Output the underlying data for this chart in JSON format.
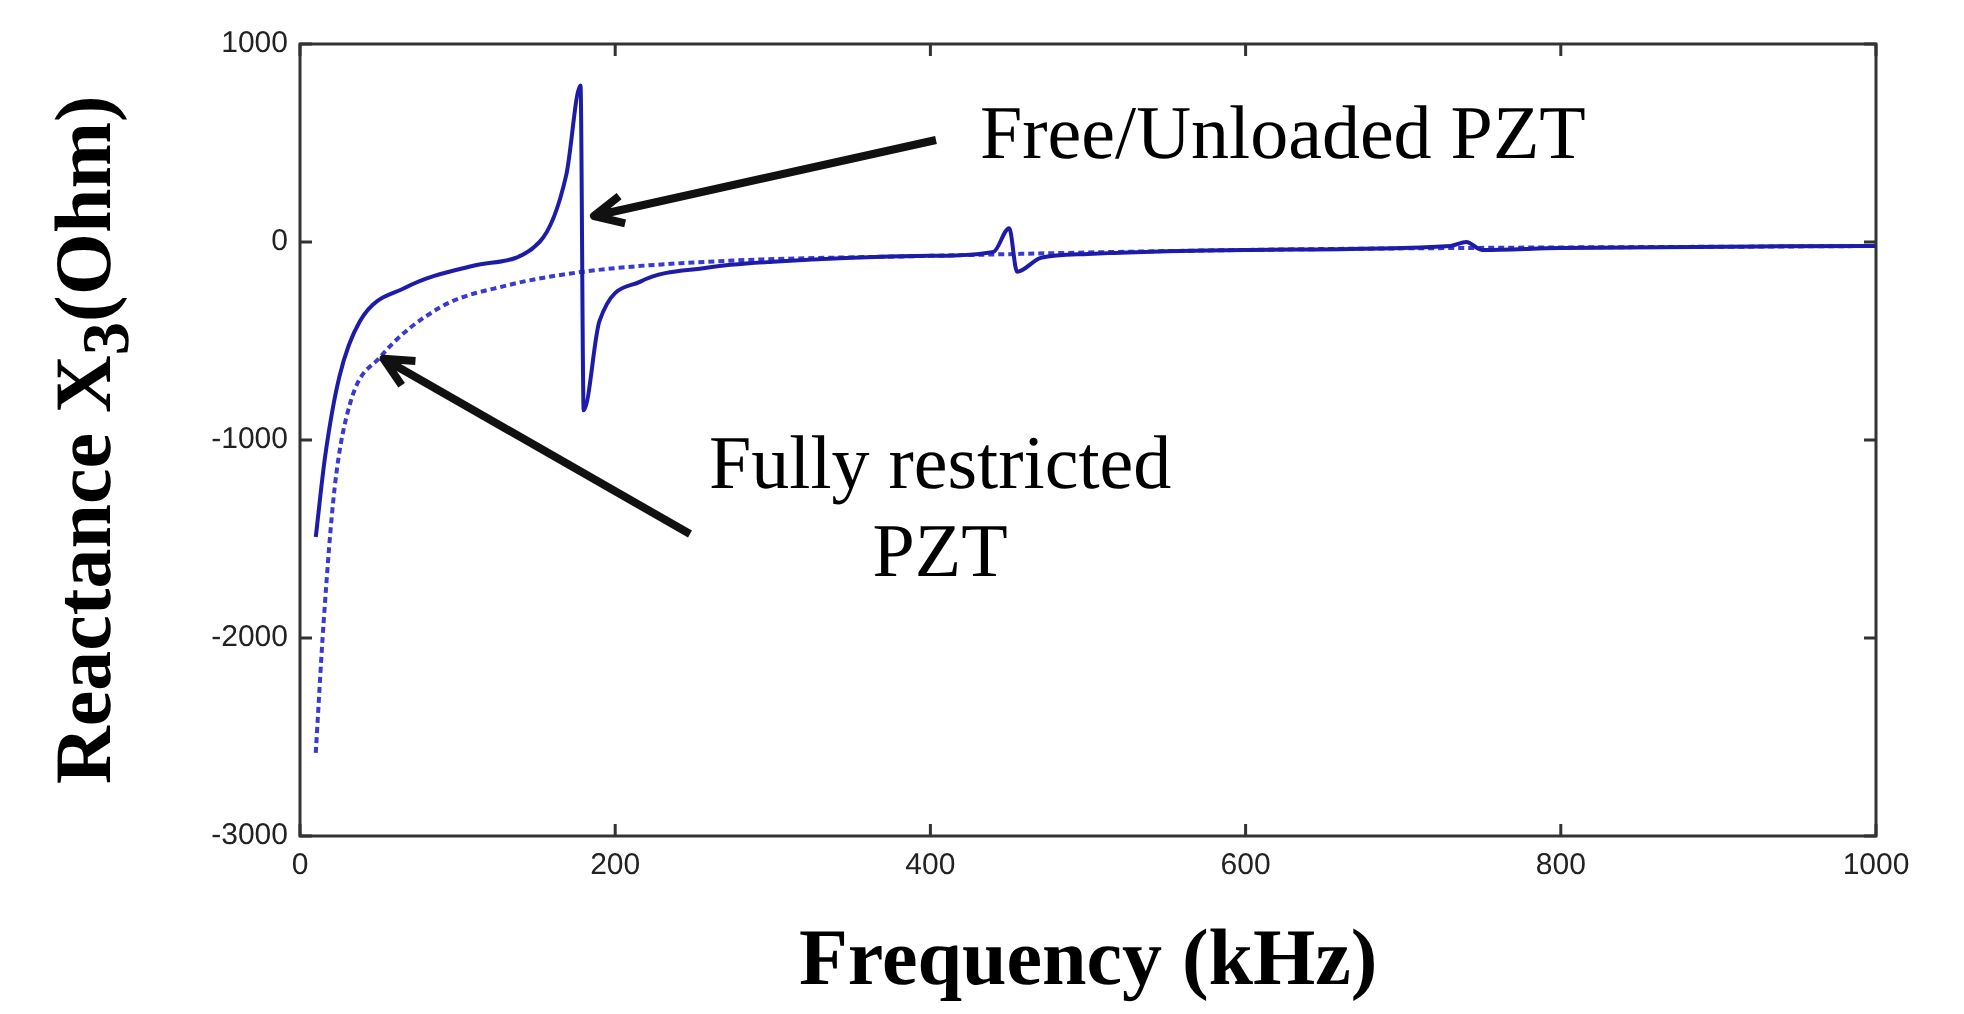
{
  "chart_data": {
    "type": "line",
    "xlabel": "Frequency (kHz)",
    "ylabel": "Reactance X$_{3}$(Ohm)",
    "xlim": [
      0,
      1000
    ],
    "ylim": [
      -3000,
      1000
    ],
    "xticks": [
      0,
      200,
      400,
      600,
      800,
      1000
    ],
    "yticks": [
      -3000,
      -2000,
      -1000,
      0,
      1000
    ],
    "grid": false,
    "legend": false,
    "marker": "none",
    "series": [
      {
        "color": "#1c1ca8",
        "line_style": "solid",
        "x": [
          10,
          16,
          25,
          38,
          67,
          110,
          152,
          169,
          178,
          180,
          190,
          216,
          258,
          300,
          400,
          440,
          450,
          455,
          470,
          500,
          600,
          730,
          740,
          750,
          800,
          1000
        ],
        "values": [
          -1490,
          -1080,
          -680,
          -400,
          -230,
          -120,
          0,
          340,
          790,
          -850,
          -400,
          -200,
          -130,
          -100,
          -70,
          -50,
          70,
          -150,
          -80,
          -60,
          -40,
          -20,
          0,
          -40,
          -30,
          -20
        ]
      },
      {
        "color": "#3a3ad0",
        "line_style": "dashed",
        "x": [
          10,
          15,
          22,
          32,
          51,
          89,
          131,
          180,
          258,
          400,
          600,
          1000
        ],
        "values": [
          -2580,
          -1920,
          -1240,
          -810,
          -580,
          -330,
          -220,
          -150,
          -100,
          -70,
          -40,
          -20
        ]
      }
    ],
    "annotations": [
      "Free/Unloaded PZT",
      {
        "text": "Fully restricted\nPZT",
        "x": 53,
        "y": -590
      }
    ]
  }
}
